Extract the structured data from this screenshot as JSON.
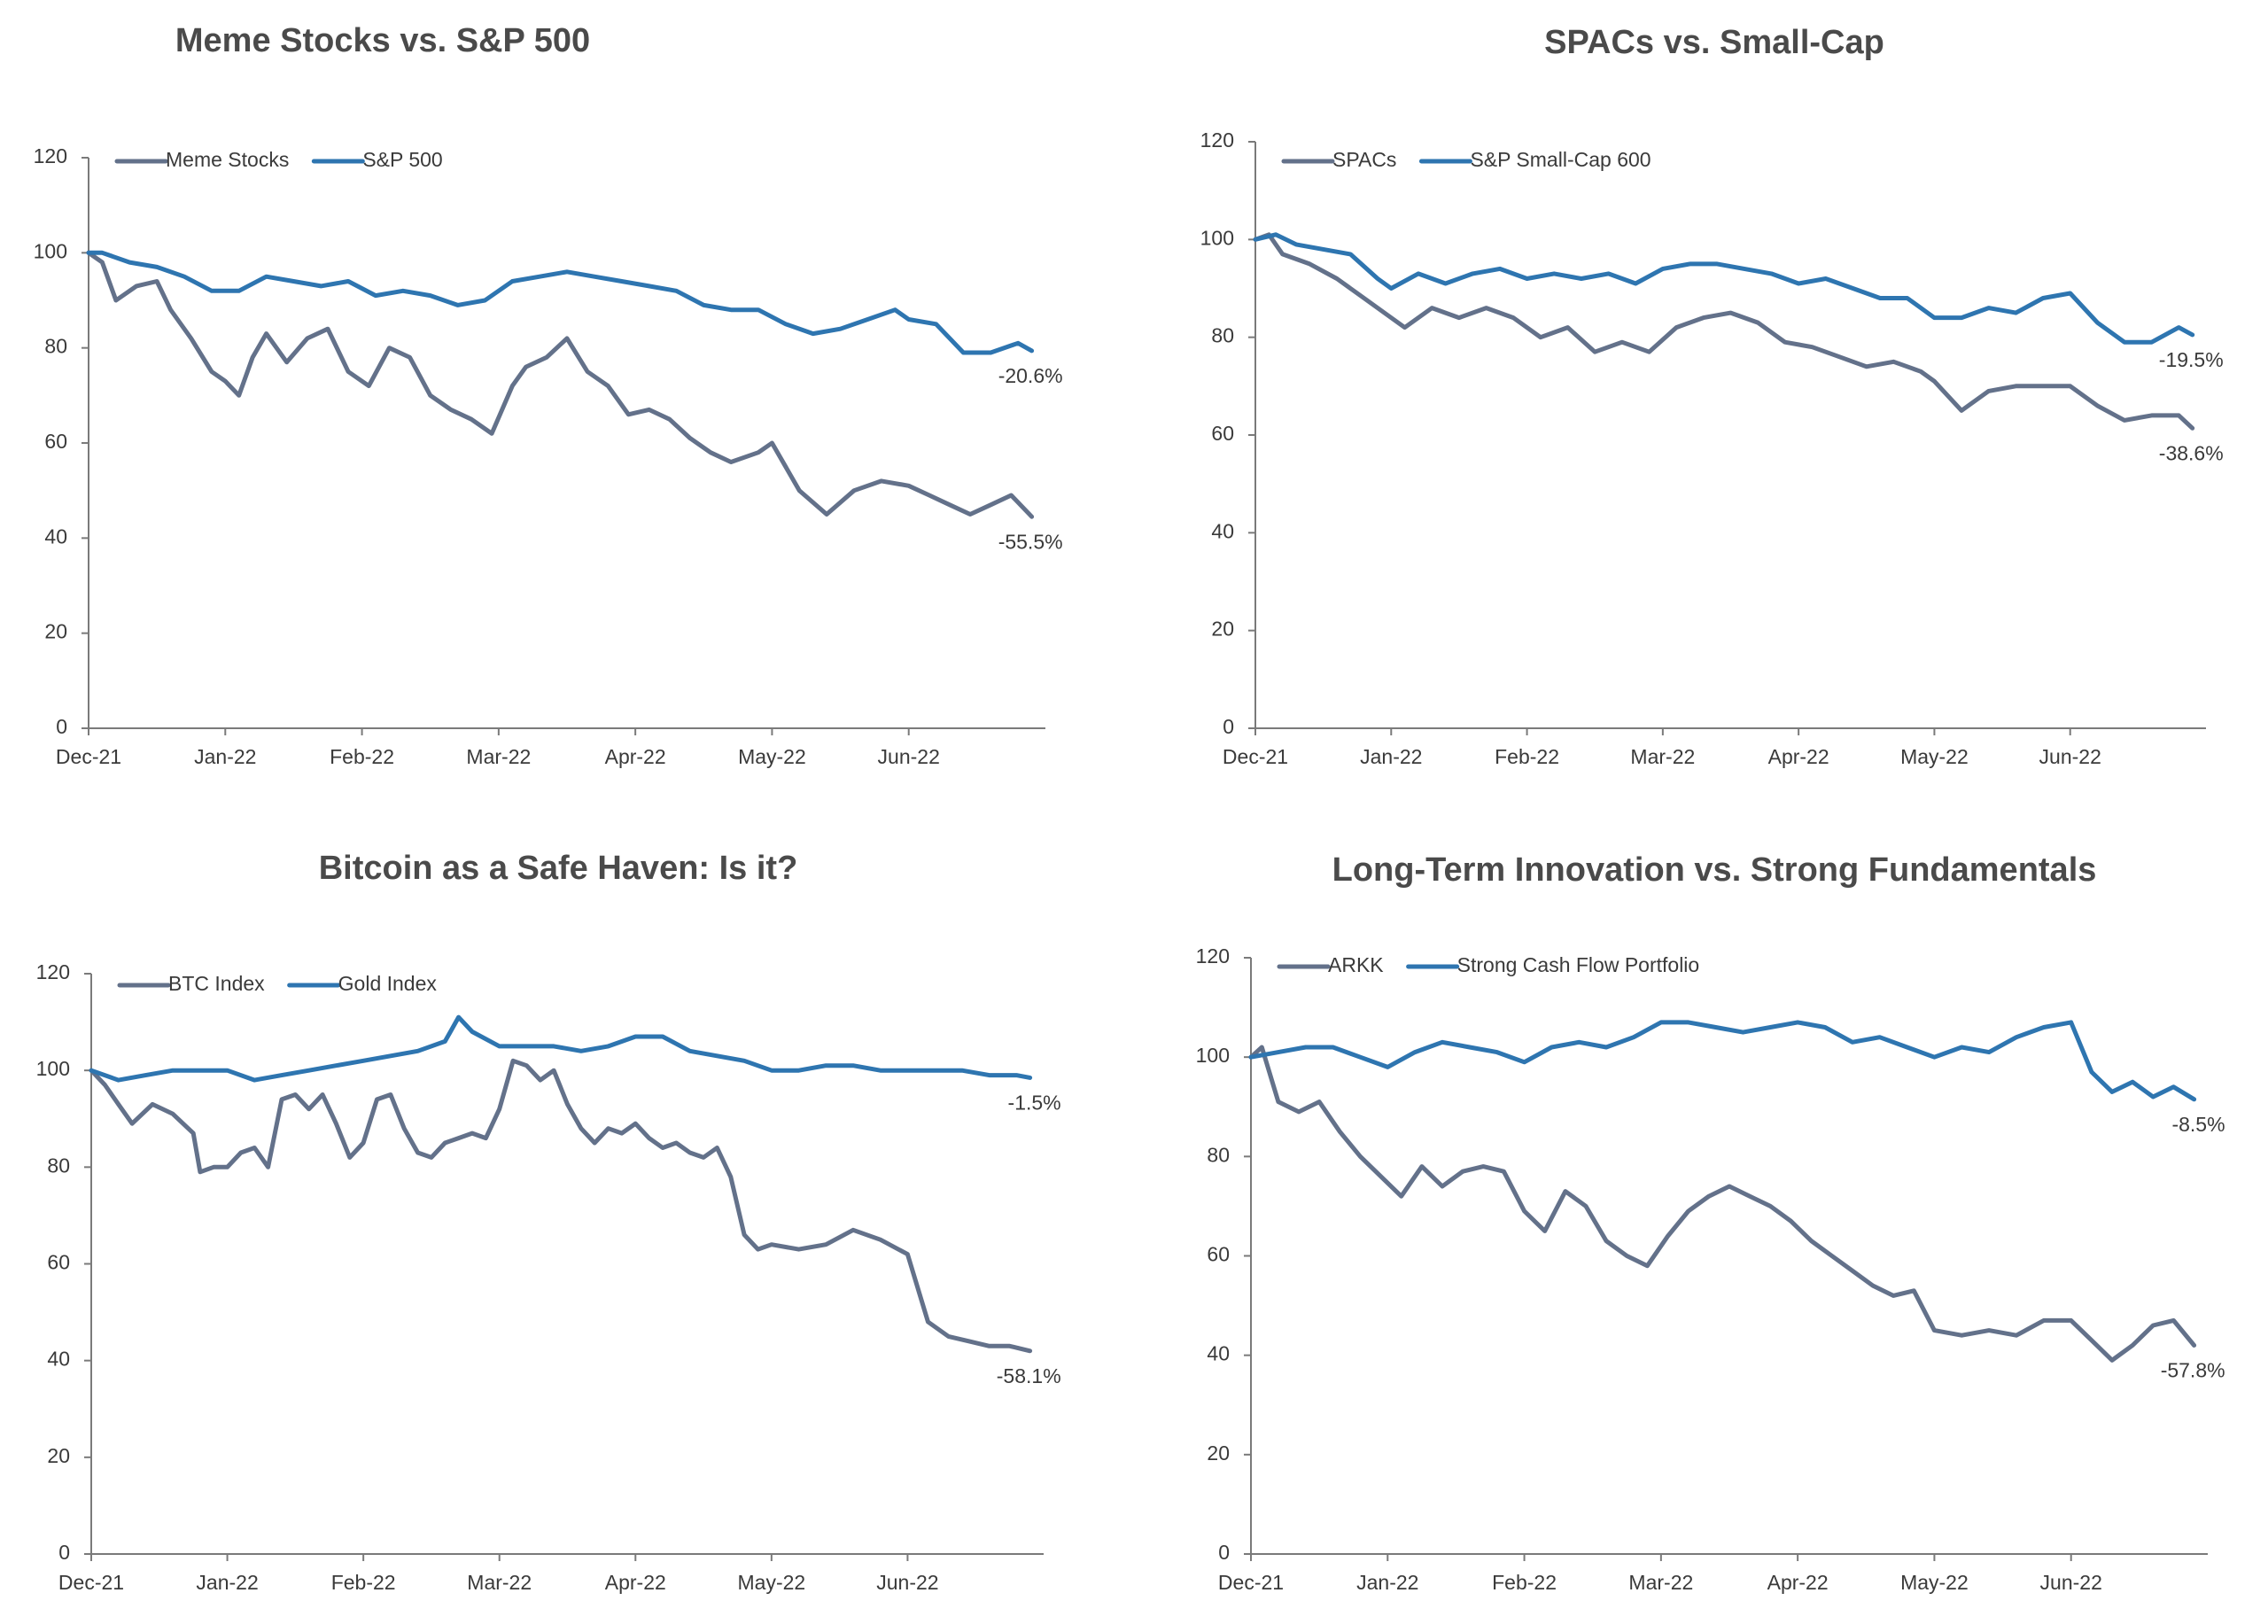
{
  "colors": {
    "gray_series": "#63718a",
    "blue_series": "#2e75b0",
    "axis": "#7a7a7a"
  },
  "chart_data": [
    {
      "type": "line",
      "title": "Meme Stocks vs. S&P 500",
      "xlabel": "",
      "ylabel": "",
      "ylim": [
        0,
        120
      ],
      "yticks": [
        "0",
        "20",
        "40",
        "60",
        "80",
        "100",
        "120"
      ],
      "xlim": [
        0,
        7
      ],
      "xticks": [
        {
          "label": "Dec-21",
          "x": 0
        },
        {
          "label": "Jan-22",
          "x": 1
        },
        {
          "label": "Feb-22",
          "x": 2
        },
        {
          "label": "Mar-22",
          "x": 3
        },
        {
          "label": "Apr-22",
          "x": 4
        },
        {
          "label": "May-22",
          "x": 5
        },
        {
          "label": "Jun-22",
          "x": 6
        }
      ],
      "legend": "top-left",
      "series": [
        {
          "name": "Meme Stocks",
          "color": "gray",
          "end_label": "-55.5%",
          "x": [
            0,
            0.1,
            0.2,
            0.35,
            0.5,
            0.6,
            0.75,
            0.9,
            1.0,
            1.1,
            1.2,
            1.3,
            1.45,
            1.6,
            1.75,
            1.9,
            2.05,
            2.2,
            2.35,
            2.5,
            2.65,
            2.8,
            2.95,
            3.1,
            3.2,
            3.35,
            3.5,
            3.65,
            3.8,
            3.95,
            4.1,
            4.25,
            4.4,
            4.55,
            4.7,
            4.9,
            5.0,
            5.2,
            5.4,
            5.6,
            5.8,
            6.0,
            6.15,
            6.3,
            6.45,
            6.6,
            6.75,
            6.9
          ],
          "values": [
            100,
            98,
            90,
            93,
            94,
            88,
            82,
            75,
            73,
            70,
            78,
            83,
            77,
            82,
            84,
            75,
            72,
            80,
            78,
            70,
            67,
            65,
            62,
            72,
            76,
            78,
            82,
            75,
            72,
            66,
            67,
            65,
            61,
            58,
            56,
            58,
            60,
            50,
            45,
            50,
            52,
            51,
            49,
            47,
            45,
            47,
            49,
            44.5
          ]
        },
        {
          "name": "S&P 500",
          "color": "blue",
          "end_label": "-20.6%",
          "x": [
            0,
            0.1,
            0.3,
            0.5,
            0.7,
            0.9,
            1.1,
            1.3,
            1.5,
            1.7,
            1.9,
            2.1,
            2.3,
            2.5,
            2.7,
            2.9,
            3.1,
            3.3,
            3.5,
            3.7,
            3.9,
            4.1,
            4.3,
            4.5,
            4.7,
            4.9,
            5.1,
            5.3,
            5.5,
            5.7,
            5.9,
            6.0,
            6.2,
            6.4,
            6.6,
            6.8,
            6.9
          ],
          "values": [
            100,
            100,
            98,
            97,
            95,
            92,
            92,
            95,
            94,
            93,
            94,
            91,
            92,
            91,
            89,
            90,
            94,
            95,
            96,
            95,
            94,
            93,
            92,
            89,
            88,
            88,
            85,
            83,
            84,
            86,
            88,
            86,
            85,
            79,
            79,
            81,
            79.4
          ]
        }
      ]
    },
    {
      "type": "line",
      "title": "SPACs vs. Small-Cap",
      "xlabel": "",
      "ylabel": "",
      "ylim": [
        0,
        120
      ],
      "yticks": [
        "0",
        "20",
        "40",
        "60",
        "80",
        "100",
        "120"
      ],
      "xlim": [
        0,
        7
      ],
      "xticks": [
        {
          "label": "Dec-21",
          "x": 0
        },
        {
          "label": "Jan-22",
          "x": 1
        },
        {
          "label": "Feb-22",
          "x": 2
        },
        {
          "label": "Mar-22",
          "x": 3
        },
        {
          "label": "Apr-22",
          "x": 4
        },
        {
          "label": "May-22",
          "x": 5
        },
        {
          "label": "Jun-22",
          "x": 6
        }
      ],
      "legend": "top-left",
      "series": [
        {
          "name": "SPACs",
          "color": "gray",
          "end_label": "-38.6%",
          "x": [
            0,
            0.1,
            0.2,
            0.4,
            0.6,
            0.8,
            1.0,
            1.1,
            1.3,
            1.5,
            1.7,
            1.9,
            2.1,
            2.3,
            2.5,
            2.7,
            2.9,
            3.1,
            3.3,
            3.5,
            3.7,
            3.9,
            4.1,
            4.3,
            4.5,
            4.7,
            4.9,
            5.0,
            5.2,
            5.4,
            5.6,
            5.8,
            6.0,
            6.2,
            6.4,
            6.6,
            6.8,
            6.9
          ],
          "values": [
            100,
            101,
            97,
            95,
            92,
            88,
            84,
            82,
            86,
            84,
            86,
            84,
            80,
            82,
            77,
            79,
            77,
            82,
            84,
            85,
            83,
            79,
            78,
            76,
            74,
            75,
            73,
            71,
            65,
            69,
            70,
            70,
            70,
            66,
            63,
            64,
            64,
            61.4
          ]
        },
        {
          "name": "S&P Small-Cap 600",
          "color": "blue",
          "end_label": "-19.5%",
          "x": [
            0,
            0.15,
            0.3,
            0.5,
            0.7,
            0.9,
            1.0,
            1.2,
            1.4,
            1.6,
            1.8,
            2.0,
            2.2,
            2.4,
            2.6,
            2.8,
            3.0,
            3.2,
            3.4,
            3.6,
            3.8,
            4.0,
            4.2,
            4.4,
            4.6,
            4.8,
            5.0,
            5.2,
            5.4,
            5.6,
            5.8,
            6.0,
            6.2,
            6.4,
            6.6,
            6.8,
            6.9
          ],
          "values": [
            100,
            101,
            99,
            98,
            97,
            92,
            90,
            93,
            91,
            93,
            94,
            92,
            93,
            92,
            93,
            91,
            94,
            95,
            95,
            94,
            93,
            91,
            92,
            90,
            88,
            88,
            84,
            84,
            86,
            85,
            88,
            89,
            83,
            79,
            79,
            82,
            80.5
          ]
        }
      ]
    },
    {
      "type": "line",
      "title": "Bitcoin as a Safe Haven: Is it?",
      "xlabel": "",
      "ylabel": "",
      "ylim": [
        0,
        120
      ],
      "yticks": [
        "0",
        "20",
        "40",
        "60",
        "80",
        "100",
        "120"
      ],
      "xlim": [
        0,
        7
      ],
      "xticks": [
        {
          "label": "Dec-21",
          "x": 0
        },
        {
          "label": "Jan-22",
          "x": 1
        },
        {
          "label": "Feb-22",
          "x": 2
        },
        {
          "label": "Mar-22",
          "x": 3
        },
        {
          "label": "Apr-22",
          "x": 4
        },
        {
          "label": "May-22",
          "x": 5
        },
        {
          "label": "Jun-22",
          "x": 6
        }
      ],
      "legend": "top-left",
      "series": [
        {
          "name": "BTC Index",
          "color": "gray",
          "end_label": "-58.1%",
          "x": [
            0,
            0.1,
            0.2,
            0.3,
            0.45,
            0.6,
            0.75,
            0.8,
            0.9,
            1.0,
            1.1,
            1.2,
            1.3,
            1.4,
            1.5,
            1.6,
            1.7,
            1.8,
            1.9,
            2.0,
            2.1,
            2.2,
            2.3,
            2.4,
            2.5,
            2.6,
            2.7,
            2.8,
            2.9,
            3.0,
            3.1,
            3.2,
            3.3,
            3.4,
            3.5,
            3.6,
            3.7,
            3.8,
            3.9,
            4.0,
            4.1,
            4.2,
            4.3,
            4.4,
            4.5,
            4.6,
            4.7,
            4.8,
            4.9,
            5.0,
            5.2,
            5.4,
            5.6,
            5.8,
            6.0,
            6.15,
            6.3,
            6.45,
            6.6,
            6.75,
            6.9
          ],
          "values": [
            100,
            97,
            93,
            89,
            93,
            91,
            87,
            79,
            80,
            80,
            83,
            84,
            80,
            94,
            95,
            92,
            95,
            89,
            82,
            85,
            94,
            95,
            88,
            83,
            82,
            85,
            86,
            87,
            86,
            92,
            102,
            101,
            98,
            100,
            93,
            88,
            85,
            88,
            87,
            89,
            86,
            84,
            85,
            83,
            82,
            84,
            78,
            66,
            63,
            64,
            63,
            64,
            67,
            65,
            62,
            48,
            45,
            44,
            43,
            43,
            42
          ]
        },
        {
          "name": "Gold Index",
          "color": "blue",
          "end_label": "-1.5%",
          "x": [
            0,
            0.2,
            0.4,
            0.6,
            0.8,
            1.0,
            1.2,
            1.4,
            1.6,
            1.8,
            2.0,
            2.2,
            2.4,
            2.6,
            2.7,
            2.8,
            3.0,
            3.2,
            3.4,
            3.6,
            3.8,
            4.0,
            4.2,
            4.4,
            4.6,
            4.8,
            5.0,
            5.2,
            5.4,
            5.6,
            5.8,
            6.0,
            6.2,
            6.4,
            6.6,
            6.8,
            6.9
          ],
          "values": [
            100,
            98,
            99,
            100,
            100,
            100,
            98,
            99,
            100,
            101,
            102,
            103,
            104,
            106,
            111,
            108,
            105,
            105,
            105,
            104,
            105,
            107,
            107,
            104,
            103,
            102,
            100,
            100,
            101,
            101,
            100,
            100,
            100,
            100,
            99,
            99,
            98.5
          ]
        }
      ]
    },
    {
      "type": "line",
      "title": "Long-Term Innovation vs. Strong Fundamentals",
      "xlabel": "",
      "ylabel": "",
      "ylim": [
        0,
        120
      ],
      "yticks": [
        "0",
        "20",
        "40",
        "60",
        "80",
        "100",
        "120"
      ],
      "xlim": [
        0,
        7
      ],
      "xticks": [
        {
          "label": "Dec-21",
          "x": 0
        },
        {
          "label": "Jan-22",
          "x": 1
        },
        {
          "label": "Feb-22",
          "x": 2
        },
        {
          "label": "Mar-22",
          "x": 3
        },
        {
          "label": "Apr-22",
          "x": 4
        },
        {
          "label": "May-22",
          "x": 5
        },
        {
          "label": "Jun-22",
          "x": 6
        }
      ],
      "legend": "top-left",
      "series": [
        {
          "name": "ARKK",
          "color": "gray",
          "end_label": "-57.8%",
          "x": [
            0,
            0.08,
            0.2,
            0.35,
            0.5,
            0.65,
            0.8,
            0.95,
            1.1,
            1.25,
            1.4,
            1.55,
            1.7,
            1.85,
            2.0,
            2.15,
            2.3,
            2.45,
            2.6,
            2.75,
            2.9,
            3.05,
            3.2,
            3.35,
            3.5,
            3.65,
            3.8,
            3.95,
            4.1,
            4.25,
            4.4,
            4.55,
            4.7,
            4.85,
            5.0,
            5.2,
            5.4,
            5.6,
            5.8,
            6.0,
            6.15,
            6.3,
            6.45,
            6.6,
            6.75,
            6.9
          ],
          "values": [
            100,
            102,
            91,
            89,
            91,
            85,
            80,
            76,
            72,
            78,
            74,
            77,
            78,
            77,
            69,
            65,
            73,
            70,
            63,
            60,
            58,
            64,
            69,
            72,
            74,
            72,
            70,
            67,
            63,
            60,
            57,
            54,
            52,
            53,
            45,
            44,
            45,
            44,
            47,
            47,
            43,
            39,
            42,
            46,
            47,
            42
          ]
        },
        {
          "name": "Strong Cash Flow Portfolio",
          "color": "blue",
          "end_label": "-8.5%",
          "x": [
            0,
            0.2,
            0.4,
            0.6,
            0.8,
            1.0,
            1.2,
            1.4,
            1.6,
            1.8,
            2.0,
            2.2,
            2.4,
            2.6,
            2.8,
            3.0,
            3.2,
            3.4,
            3.6,
            3.8,
            4.0,
            4.2,
            4.4,
            4.6,
            4.8,
            5.0,
            5.2,
            5.4,
            5.6,
            5.8,
            6.0,
            6.15,
            6.3,
            6.45,
            6.6,
            6.75,
            6.9
          ],
          "values": [
            100,
            101,
            102,
            102,
            100,
            98,
            101,
            103,
            102,
            101,
            99,
            102,
            103,
            102,
            104,
            107,
            107,
            106,
            105,
            106,
            107,
            106,
            103,
            104,
            102,
            100,
            102,
            101,
            104,
            106,
            107,
            97,
            93,
            95,
            92,
            94,
            91.5
          ]
        }
      ]
    }
  ]
}
